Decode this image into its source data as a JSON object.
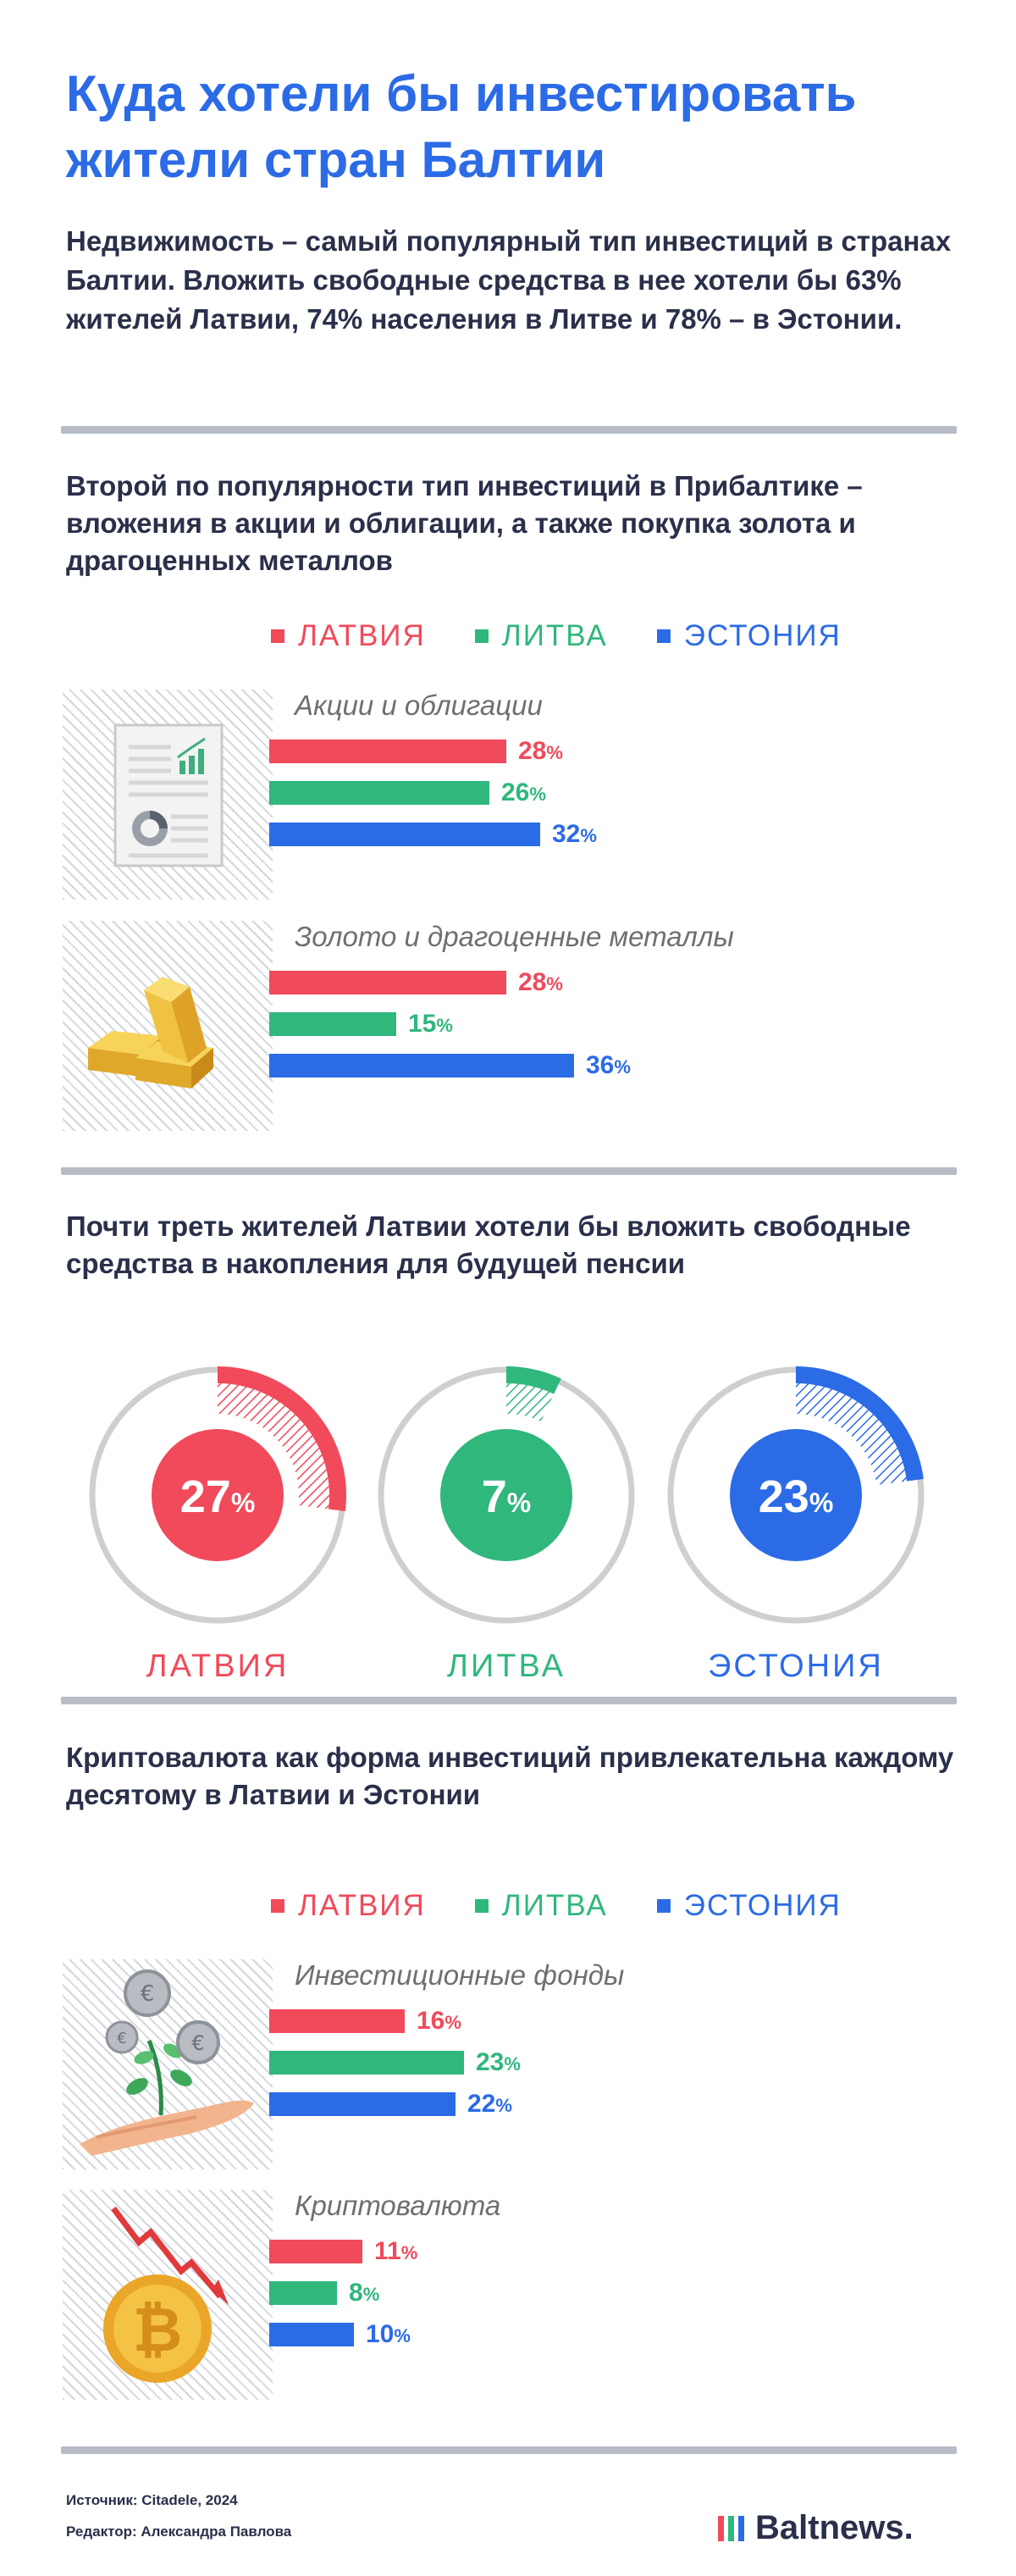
{
  "title": "Куда хотели бы инвестировать жители стран Балтии",
  "lead": "Недвижимость – самый популярный тип инвестиций в странах Балтии. Вложить свободные средства в нее хотели бы 63% жителей Латвии, 74% населения в Литве и 78% – в Эстонии.",
  "section2_title": "Второй по популярности тип инвестиций в Прибалтике – вложения в акции и облигации, а также покупка золота и драгоценных металлов",
  "section3_title": "Почти треть жителей Латвии хотели бы вложить свободные средства в накопления для будущей пенсии",
  "section4_title": "Криптовалюта как форма инвестиций привлекательна каждому десятому в Латвии и Эстонии",
  "legend": [
    "ЛАТВИЯ",
    "ЛИТВА",
    "ЭСТОНИЯ"
  ],
  "colors": {
    "latvia": "#f04a5b",
    "lithuania": "#2fb77c",
    "estonia": "#2c6be6",
    "title": "#2c6be6",
    "text": "#2a2f4a",
    "ring": "#cfcfcf"
  },
  "percent_sign": "%",
  "icons": [
    "report-document-icon",
    "gold-bars-icon",
    "coins-plant-hand-icon",
    "bitcoin-falling-icon"
  ],
  "chart_data": [
    {
      "type": "bar",
      "orientation": "horizontal",
      "categories": [
        "Акции и облигации",
        "Золото и драгоценные металлы"
      ],
      "series": [
        {
          "name": "ЛАТВИЯ",
          "values": [
            28,
            28
          ]
        },
        {
          "name": "ЛИТВА",
          "values": [
            26,
            15
          ]
        },
        {
          "name": "ЭСТОНИЯ",
          "values": [
            32,
            36
          ]
        }
      ],
      "unit": "%",
      "xlim": [
        0,
        40
      ]
    },
    {
      "type": "pie",
      "style": "donut",
      "categories": [
        "ЛАТВИЯ",
        "ЛИТВА",
        "ЭСТОНИЯ"
      ],
      "values": [
        27,
        7,
        23
      ],
      "unit": "%"
    },
    {
      "type": "bar",
      "orientation": "horizontal",
      "categories": [
        "Инвестиционные фонды",
        "Криптовалюта"
      ],
      "series": [
        {
          "name": "ЛАТВИЯ",
          "values": [
            16,
            11
          ]
        },
        {
          "name": "ЛИТВА",
          "values": [
            23,
            8
          ]
        },
        {
          "name": "ЭСТОНИЯ",
          "values": [
            22,
            10
          ]
        }
      ],
      "unit": "%",
      "xlim": [
        0,
        40
      ]
    }
  ],
  "footer": {
    "source": "Источник: Citadele, 2024",
    "editor": "Редактор: Александра Павлова",
    "brand": "Baltnews."
  }
}
